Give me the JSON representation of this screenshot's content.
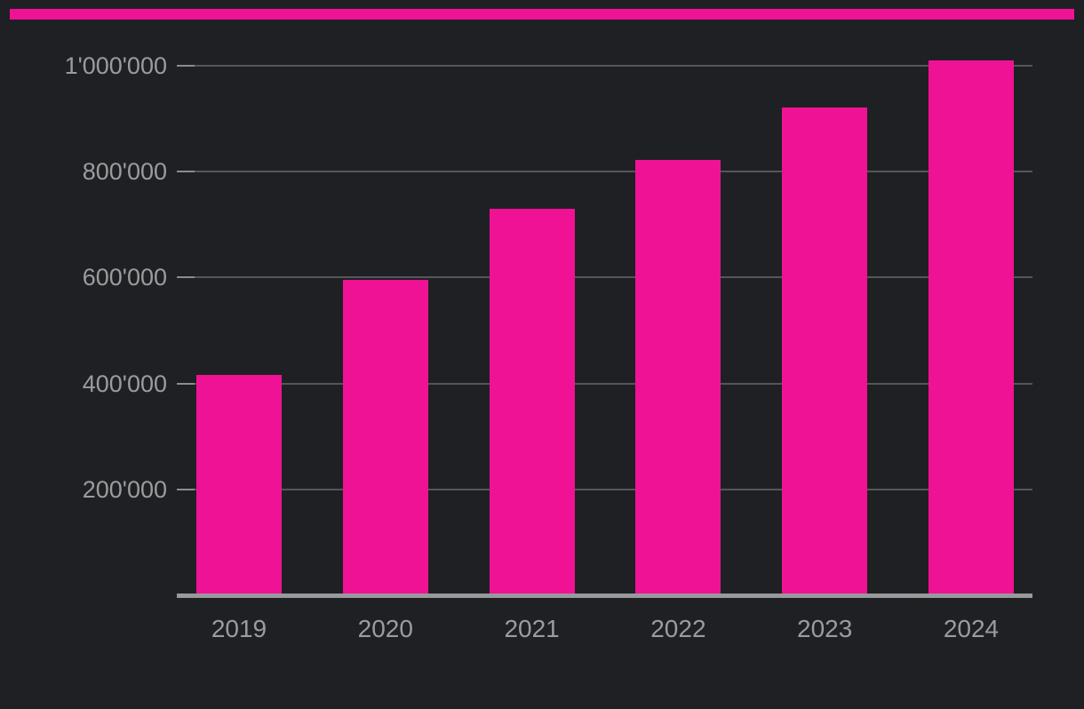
{
  "page": {
    "background_color": "#1f2023",
    "accent_color": "#f01295"
  },
  "chart_data": {
    "type": "bar",
    "categories": [
      "2019",
      "2020",
      "2021",
      "2022",
      "2023",
      "2024"
    ],
    "values": [
      413000,
      593000,
      727000,
      819000,
      918000,
      1007000
    ],
    "title": "",
    "xlabel": "",
    "ylabel": "",
    "ylim": [
      0,
      1050000
    ],
    "yticks": [
      200000,
      400000,
      600000,
      800000,
      1000000
    ],
    "ytick_labels": [
      "200'000",
      "400'000",
      "600'000",
      "800'000",
      "1'000'000"
    ],
    "number_format": "apostrophe-thousands",
    "grid": true,
    "legend": "none",
    "bar_color": "#f01295",
    "gridline_color": "#54565a",
    "tick_color": "#8a8c8e",
    "axis_line_color": "#97999b",
    "label_color": "#9a9c9e"
  }
}
